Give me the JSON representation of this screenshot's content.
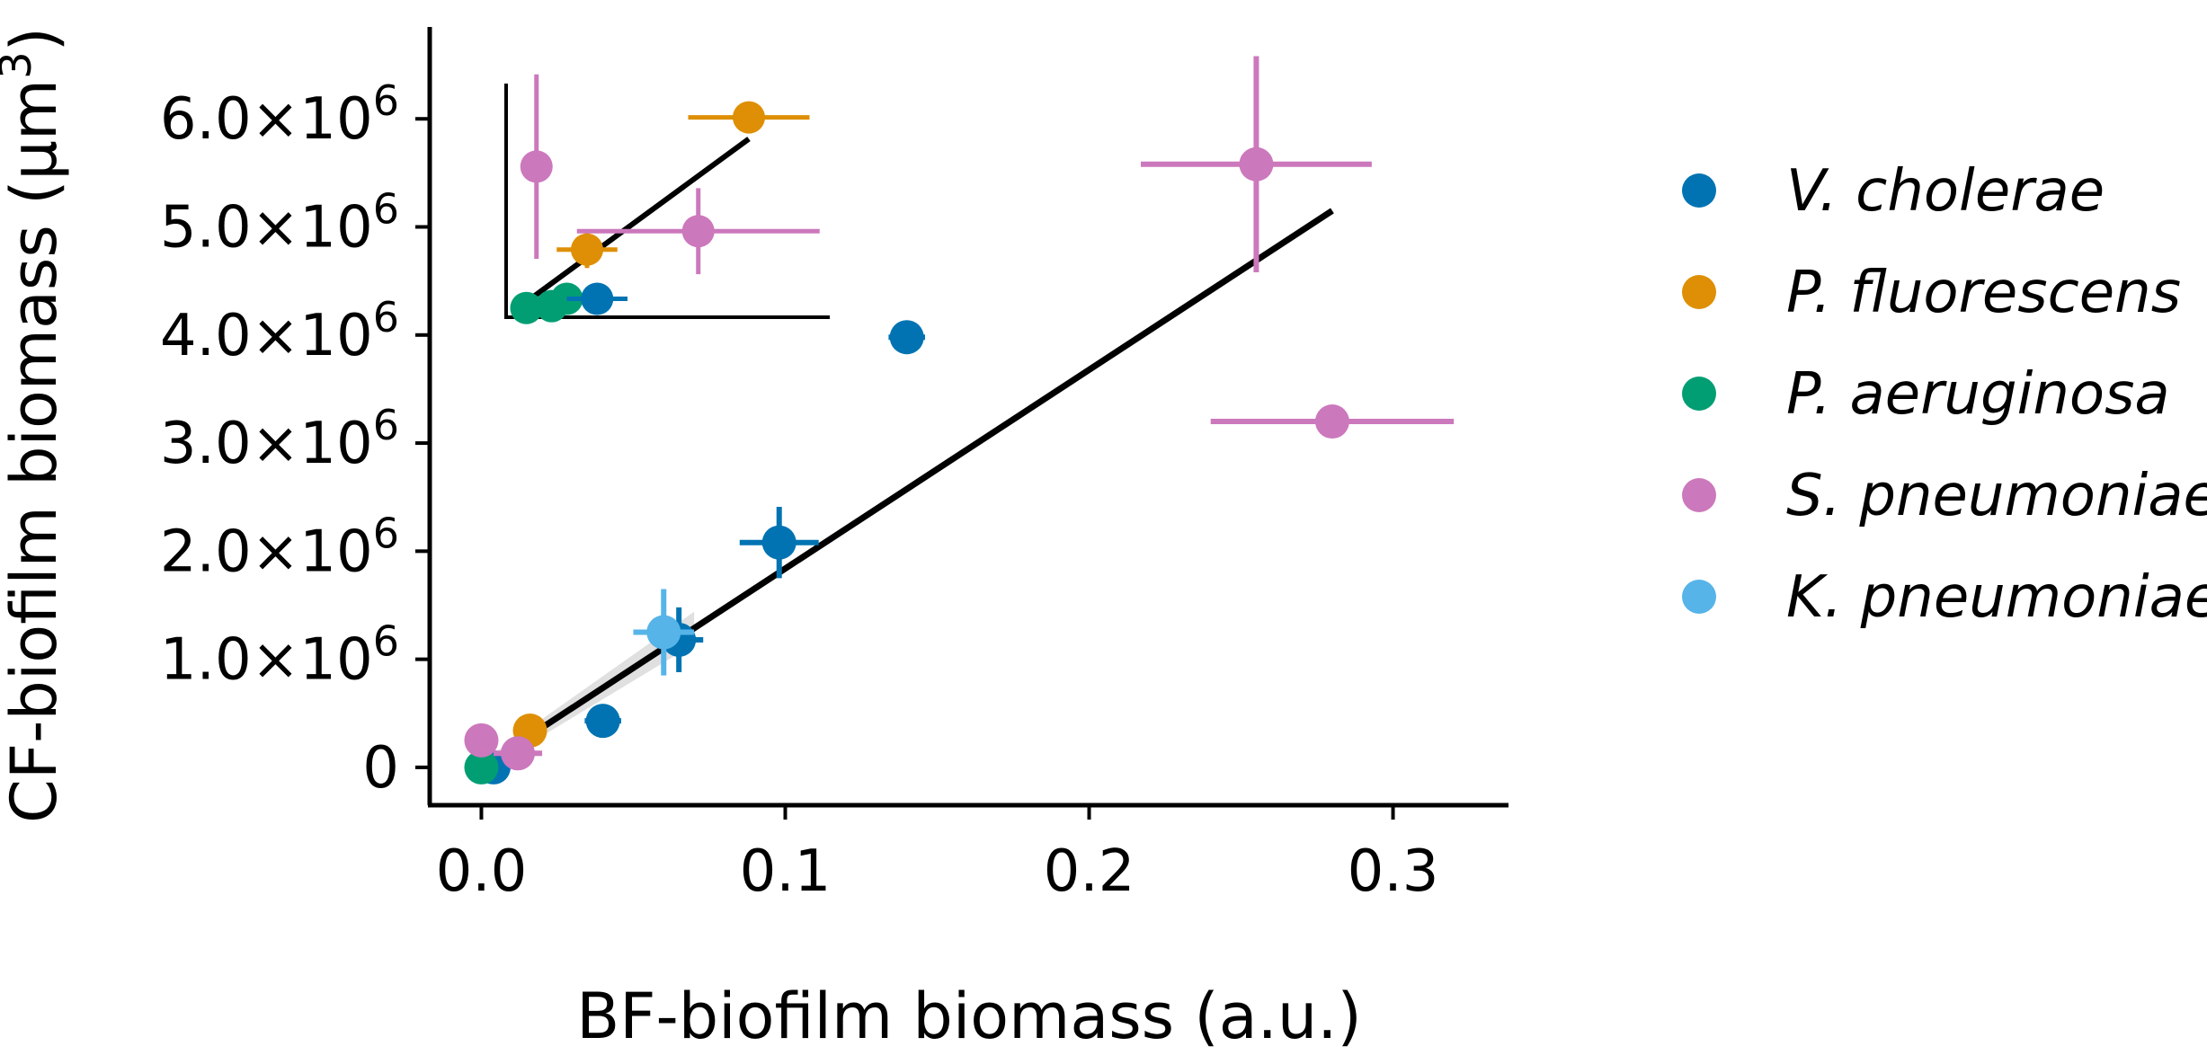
{
  "chart_data": {
    "type": "scatter",
    "xlabel": "BF-biofilm biomass (a.u.)",
    "ylabel": "CF-biofilm biomass (μm",
    "ylabel_sup": "3",
    "ylabel_end": ")",
    "xlim": [
      -0.017,
      0.338
    ],
    "ylim": [
      -350000,
      6850000
    ],
    "x_ticks": [
      0.0,
      0.1,
      0.2,
      0.3
    ],
    "x_tick_labels": [
      "0.0",
      "0.1",
      "0.2",
      "0.3"
    ],
    "y_ticks": [
      0,
      1000000,
      2000000,
      3000000,
      4000000,
      5000000,
      6000000
    ],
    "y_tick_labels": [
      {
        "base": "0",
        "exp": ""
      },
      {
        "base": "1.0×10",
        "exp": "6"
      },
      {
        "base": "2.0×10",
        "exp": "6"
      },
      {
        "base": "3.0×10",
        "exp": "6"
      },
      {
        "base": "4.0×10",
        "exp": "6"
      },
      {
        "base": "5.0×10",
        "exp": "6"
      },
      {
        "base": "6.0×10",
        "exp": "6"
      }
    ],
    "grid": false,
    "legend_position": "right",
    "fit_line": {
      "x": [
        0.0,
        0.28
      ],
      "y": [
        0,
        5150000
      ],
      "color": "#000000"
    },
    "series": [
      {
        "name": "V. cholerae",
        "color": "#0173b2",
        "points": [
          {
            "x": 0.004,
            "y": 0,
            "xerr": 0.003,
            "yerr": 40000
          },
          {
            "x": 0.04,
            "y": 430000,
            "xerr": 0.006,
            "yerr": 80000
          },
          {
            "x": 0.065,
            "y": 1180000,
            "xerr": 0.008,
            "yerr": 300000
          },
          {
            "x": 0.098,
            "y": 2080000,
            "xerr": 0.013,
            "yerr": 330000
          },
          {
            "x": 0.14,
            "y": 3980000,
            "xerr": 0.006,
            "yerr": 130000
          }
        ]
      },
      {
        "name": "P. fluorescens",
        "color": "#de8f05",
        "points": [
          {
            "x": 0.016,
            "y": 340000,
            "xerr": 0.004,
            "yerr": 100000
          }
        ]
      },
      {
        "name": "P. aeruginosa",
        "color": "#029e73",
        "points": [
          {
            "x": 0.0,
            "y": 0,
            "xerr": 0.002,
            "yerr": 40000
          }
        ]
      },
      {
        "name": "S. pneumoniae",
        "color": "#cc78bc",
        "points": [
          {
            "x": 0.0,
            "y": 250000,
            "xerr": 0.002,
            "yerr": 80000
          },
          {
            "x": 0.012,
            "y": 130000,
            "xerr": 0.008,
            "yerr": 60000
          },
          {
            "x": 0.255,
            "y": 5580000,
            "xerr": 0.038,
            "yerr": 1000000
          },
          {
            "x": 0.28,
            "y": 3200000,
            "xerr": 0.04,
            "yerr": 120000
          }
        ]
      },
      {
        "name": "K. pneumoniae",
        "color": "#56b4e9",
        "points": [
          {
            "x": 0.06,
            "y": 1250000,
            "xerr": 0.01,
            "yerr": 400000
          }
        ]
      }
    ],
    "inset": {
      "xlim": [
        0,
        0.032
      ],
      "ylim": [
        0,
        380000
      ],
      "fit_line": {
        "x": [
          0.002,
          0.024
        ],
        "y": [
          25000,
          290000
        ]
      },
      "points": [
        {
          "series": 1,
          "x": 0.024,
          "y": 325000,
          "xerr": 0.006,
          "yerr": 18000
        },
        {
          "series": 1,
          "x": 0.008,
          "y": 110000,
          "xerr": 0.003,
          "yerr": 30000
        },
        {
          "series": 3,
          "x": 0.003,
          "y": 245000,
          "xerr": 0.0,
          "yerr": 150000
        },
        {
          "series": 3,
          "x": 0.019,
          "y": 140000,
          "xerr": 0.012,
          "yerr": 70000
        },
        {
          "series": 2,
          "x": 0.002,
          "y": 15000,
          "xerr": 0.001,
          "yerr": 8000
        },
        {
          "series": 2,
          "x": 0.006,
          "y": 30000,
          "xerr": 0.002,
          "yerr": 10000
        },
        {
          "series": 2,
          "x": 0.0045,
          "y": 18000,
          "xerr": 0.001,
          "yerr": 8000
        },
        {
          "series": 0,
          "x": 0.009,
          "y": 30000,
          "xerr": 0.003,
          "yerr": 10000
        }
      ]
    }
  }
}
